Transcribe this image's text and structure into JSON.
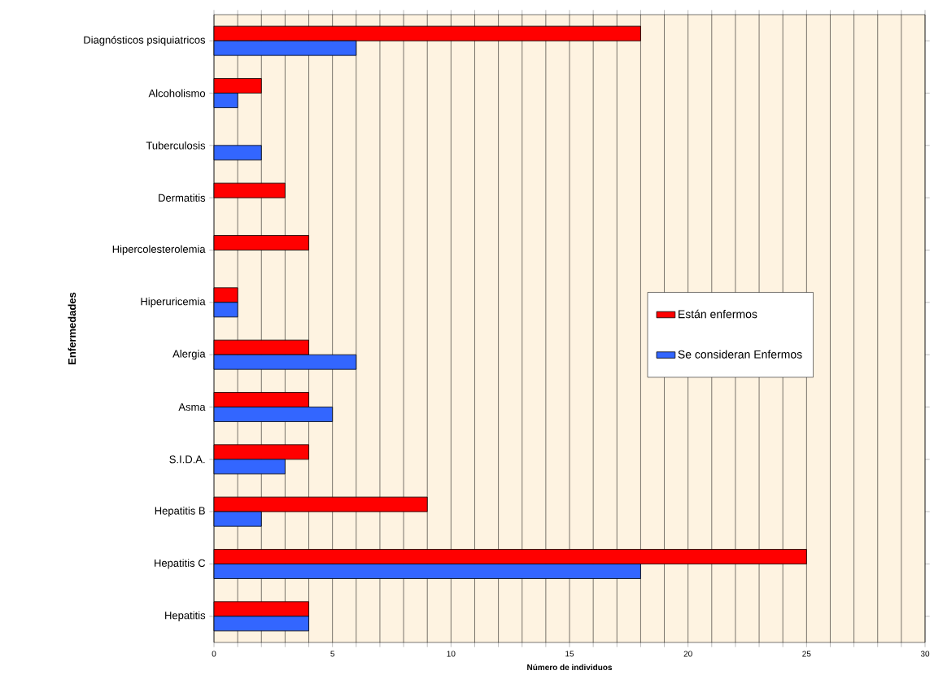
{
  "chart_data": {
    "type": "bar",
    "orientation": "horizontal",
    "xlabel": "Número de individuos",
    "ylabel": "Enfermedades",
    "categories": [
      "Diagnósticos psiquiatricos",
      "Alcoholismo",
      "Tuberculosis",
      "Dermatitis",
      "Hipercolesterolemia",
      "Hiperuricemia",
      "Alergia",
      "Asma",
      "S.I.D.A.",
      "Hepatitis B",
      "Hepatitis C",
      "Hepatitis"
    ],
    "series": [
      {
        "name": "Están enfermos",
        "color": "#ff0000",
        "values": [
          18,
          2,
          null,
          3,
          4,
          1,
          4,
          4,
          4,
          9,
          25,
          4
        ]
      },
      {
        "name": "Se consideran Enfermos",
        "color": "#3366ff",
        "values": [
          6,
          1,
          2,
          null,
          null,
          1,
          6,
          5,
          3,
          2,
          18,
          4
        ]
      }
    ],
    "xlim": [
      0,
      30
    ],
    "xticks": [
      0,
      {
        "value": 1,
        "label": null
      },
      {
        "value": 2,
        "label": null
      },
      {
        "value": 3,
        "label": null
      },
      {
        "value": 4,
        "label": null
      },
      5,
      {
        "value": 6,
        "label": null
      },
      {
        "value": 7,
        "label": null
      },
      {
        "value": 8,
        "label": null
      },
      {
        "value": 9,
        "label": null
      },
      10,
      {
        "value": 11,
        "label": null
      },
      {
        "value": 12,
        "label": null
      },
      {
        "value": 13,
        "label": null
      },
      {
        "value": 14,
        "label": null
      },
      15,
      {
        "value": 16,
        "label": null
      },
      {
        "value": 17,
        "label": null
      },
      {
        "value": 18,
        "label": null
      },
      {
        "value": 19,
        "label": null
      },
      20,
      {
        "value": 21,
        "label": null
      },
      {
        "value": 22,
        "label": null
      },
      {
        "value": 23,
        "label": null
      },
      {
        "value": 24,
        "label": null
      },
      25,
      {
        "value": 26,
        "label": null
      },
      {
        "value": 27,
        "label": null
      },
      {
        "value": 28,
        "label": null
      },
      {
        "value": 29,
        "label": null
      },
      30
    ],
    "grid": "x",
    "legend": "right"
  }
}
